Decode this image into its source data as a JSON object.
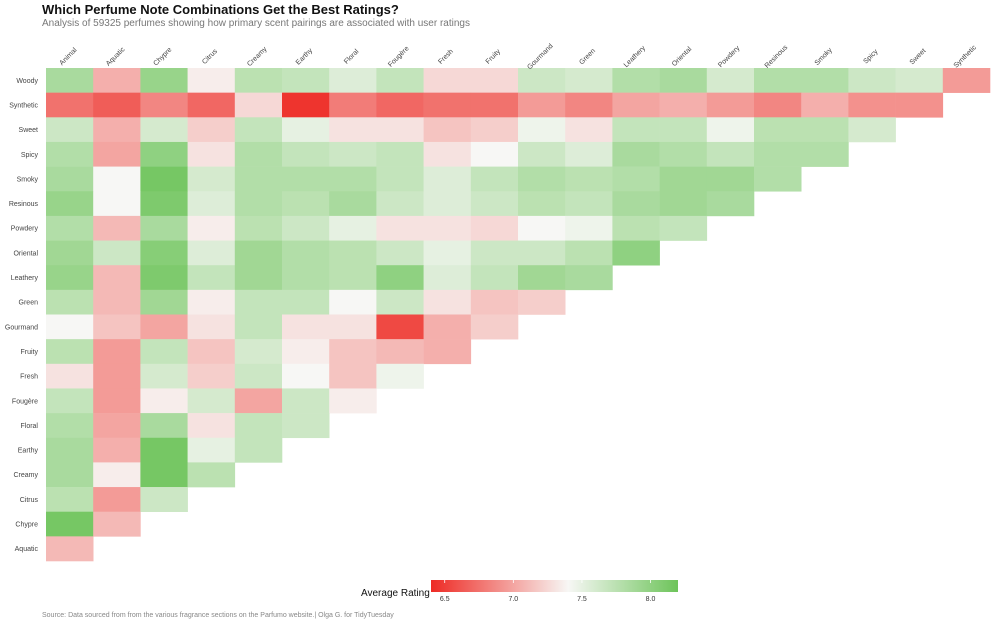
{
  "title": "Which Perfume Note Combinations Get the Best Ratings?",
  "subtitle": "Analysis of 59325 perfumes showing how primary scent pairings are associated with user ratings",
  "caption": "Source: Data sourced from from the various fragrance sections on the Parfumo website.| Olga G. for TidyTuesday",
  "colors": {
    "low": "#ee2a24",
    "mid": "#f7f7f5",
    "high": "#6dc45a"
  },
  "chart_data": {
    "type": "heatmap",
    "columns": [
      "Animal",
      "Aquatic",
      "Chypre",
      "Citrus",
      "Creamy",
      "Earthy",
      "Floral",
      "Fougère",
      "Fresh",
      "Fruity",
      "Gourmand",
      "Green",
      "Leathery",
      "Oriental",
      "Powdery",
      "Resinous",
      "Smoky",
      "Spicy",
      "Sweet",
      "Synthetic"
    ],
    "rows": [
      "Woody",
      "Synthetic",
      "Sweet",
      "Spicy",
      "Smoky",
      "Resinous",
      "Powdery",
      "Oriental",
      "Leathery",
      "Green",
      "Gourmand",
      "Fruity",
      "Fresh",
      "Fougère",
      "Floral",
      "Earthy",
      "Creamy",
      "Citrus",
      "Chypre",
      "Aquatic"
    ],
    "values": [
      [
        7.85,
        7.05,
        7.95,
        7.35,
        7.75,
        7.7,
        7.55,
        7.7,
        7.25,
        7.25,
        7.65,
        7.6,
        7.8,
        7.85,
        7.6,
        7.8,
        7.8,
        7.65,
        7.6,
        6.95
      ],
      [
        6.75,
        6.65,
        6.85,
        6.7,
        7.25,
        6.45,
        6.8,
        6.7,
        6.75,
        6.75,
        6.95,
        6.85,
        7.0,
        7.05,
        6.95,
        6.85,
        7.05,
        6.9,
        6.9
      ],
      [
        7.65,
        7.05,
        7.6,
        7.2,
        7.7,
        7.5,
        7.3,
        7.3,
        7.15,
        7.2,
        7.45,
        7.3,
        7.7,
        7.7,
        7.45,
        7.75,
        7.75,
        7.6
      ],
      [
        7.8,
        7.0,
        8.0,
        7.3,
        7.8,
        7.7,
        7.65,
        7.7,
        7.3,
        7.4,
        7.65,
        7.55,
        7.85,
        7.8,
        7.7,
        7.8,
        7.8
      ],
      [
        7.85,
        7.4,
        8.15,
        7.6,
        7.8,
        7.8,
        7.8,
        7.7,
        7.55,
        7.7,
        7.8,
        7.75,
        7.8,
        7.9,
        7.9,
        7.8
      ],
      [
        7.95,
        7.4,
        8.1,
        7.55,
        7.8,
        7.75,
        7.85,
        7.65,
        7.55,
        7.65,
        7.75,
        7.7,
        7.85,
        7.9,
        7.85
      ],
      [
        7.8,
        7.1,
        7.85,
        7.35,
        7.75,
        7.65,
        7.5,
        7.3,
        7.3,
        7.25,
        7.4,
        7.45,
        7.75,
        7.7
      ],
      [
        7.9,
        7.65,
        8.05,
        7.55,
        7.9,
        7.8,
        7.75,
        7.65,
        7.5,
        7.65,
        7.65,
        7.75,
        8.0
      ],
      [
        7.95,
        7.1,
        8.1,
        7.7,
        7.9,
        7.8,
        7.75,
        8.0,
        7.55,
        7.7,
        7.9,
        7.85
      ],
      [
        7.75,
        7.1,
        7.9,
        7.35,
        7.7,
        7.7,
        7.4,
        7.65,
        7.3,
        7.15,
        7.2
      ],
      [
        7.4,
        7.15,
        7.0,
        7.3,
        7.7,
        7.3,
        7.3,
        6.55,
        7.05,
        7.2
      ],
      [
        7.75,
        6.95,
        7.7,
        7.15,
        7.6,
        7.35,
        7.15,
        7.1,
        7.05
      ],
      [
        7.3,
        6.95,
        7.6,
        7.2,
        7.65,
        7.4,
        7.15,
        7.45
      ],
      [
        7.7,
        6.95,
        7.35,
        7.6,
        7.0,
        7.65,
        7.35
      ],
      [
        7.8,
        7.0,
        7.85,
        7.3,
        7.7,
        7.65
      ],
      [
        7.85,
        7.05,
        8.15,
        7.5,
        7.7
      ],
      [
        7.85,
        7.35,
        8.15,
        7.75
      ],
      [
        7.75,
        6.95,
        7.65
      ],
      [
        8.15,
        7.1
      ],
      [
        7.1
      ]
    ],
    "legend": {
      "title": "Average Rating",
      "min": 6.4,
      "max": 8.2,
      "mid": 7.4,
      "ticks": [
        "6.5",
        "7.0",
        "7.5",
        "8.0"
      ]
    }
  }
}
